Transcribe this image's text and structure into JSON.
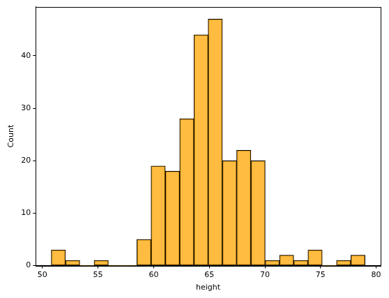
{
  "chart_data": {
    "type": "histogram",
    "x_label": "height",
    "y_label": "Count",
    "bins": [
      50.8,
      52.08,
      53.36,
      54.65,
      55.93,
      57.21,
      58.49,
      59.77,
      61.05,
      62.34,
      63.62,
      64.9,
      66.18,
      67.46,
      68.74,
      70.03,
      71.31,
      72.59,
      73.87,
      75.15,
      76.43,
      77.72,
      79.0
    ],
    "values": [
      3,
      1,
      0,
      1,
      0,
      0,
      5,
      19,
      18,
      28,
      44,
      47,
      20,
      22,
      20,
      1,
      2,
      1,
      3,
      0,
      1,
      2
    ],
    "color": "#ffa500",
    "xlim": [
      49.4,
      80.4
    ],
    "ylim": [
      0,
      49.35
    ],
    "xticks": [
      50,
      55,
      60,
      65,
      70,
      75,
      80
    ],
    "yticks": [
      0,
      10,
      20,
      30,
      40
    ],
    "grid": false
  }
}
